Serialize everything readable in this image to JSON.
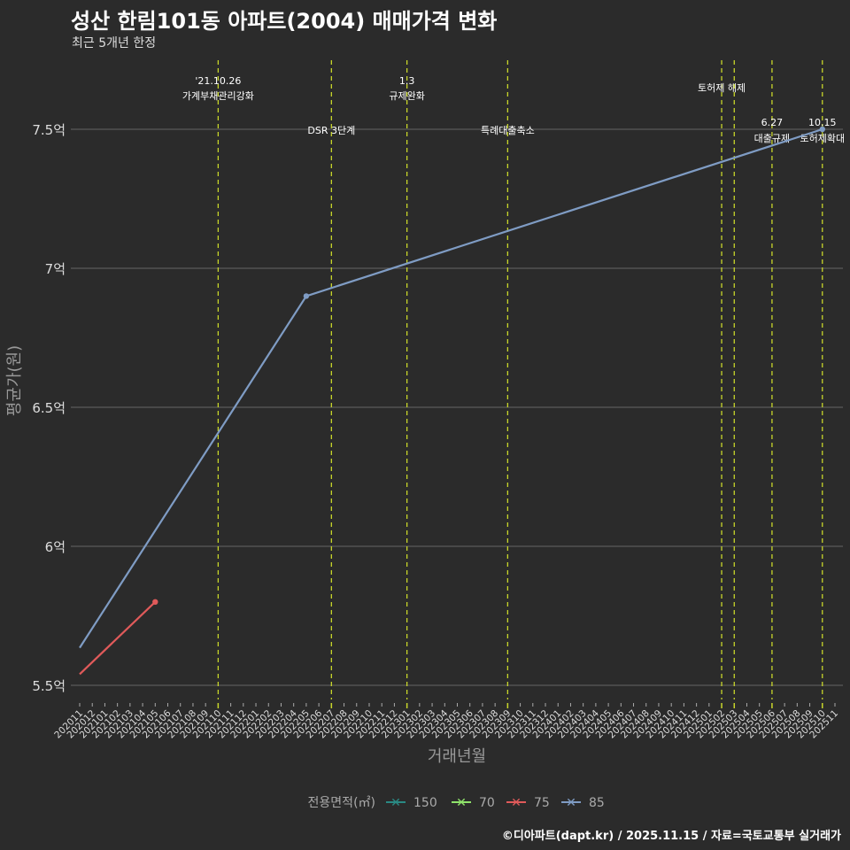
{
  "title": "성산 한림101동 아파트(2004) 매매가격 변화",
  "subtitle": "최근 5개년 한정",
  "caption": "©디아파트(dapt.kr) / 2025.11.15 / 자료=국토교통부 실거래가",
  "chart_data": {
    "type": "line",
    "xlabel": "거래년월",
    "ylabel": "평균가(원)",
    "x_start": "202011",
    "x_end": "202511",
    "ylim": [
      5.45,
      7.68
    ],
    "y_ticks": [
      5.5,
      6,
      6.5,
      7,
      7.5
    ],
    "y_tick_labels": [
      "5.5억",
      "6억",
      "6.5억",
      "7억",
      "7.5억"
    ],
    "legend_title": "전용면적(㎡)",
    "legend_position": "bottom",
    "series": [
      {
        "name": "150",
        "color": "#2a8a84",
        "points": []
      },
      {
        "name": "70",
        "color": "#8fe36b",
        "points": []
      },
      {
        "name": "75",
        "color": "#e05a5a",
        "points": [
          [
            "202011",
            5.54
          ],
          [
            "202105",
            5.8
          ]
        ]
      },
      {
        "name": "85",
        "color": "#7f9cc4",
        "points": [
          [
            "202011",
            5.635
          ],
          [
            "202205",
            6.9
          ],
          [
            "202510",
            7.5
          ]
        ]
      }
    ],
    "annotations": [
      {
        "month": "202110",
        "lines": [
          "'21.10.26",
          "가계부채관리강화"
        ],
        "row": "top"
      },
      {
        "month": "202207",
        "lines": [
          "DSR 3단계"
        ],
        "row": "low"
      },
      {
        "month": "202301",
        "lines": [
          "1.3",
          "규제완화"
        ],
        "row": "top"
      },
      {
        "month": "202309",
        "lines": [
          "특례대출축소"
        ],
        "row": "low"
      },
      {
        "month": "202502",
        "lines": [
          "토허제 해제"
        ],
        "row": "mid"
      },
      {
        "month": "202503",
        "lines": [],
        "row": "none"
      },
      {
        "month": "202506",
        "lines": [
          "6.27",
          "대출규제"
        ],
        "row": "right"
      },
      {
        "month": "202510",
        "lines": [
          "10.15",
          "토허제확대"
        ],
        "row": "right"
      }
    ],
    "vline_color": "#c8d62a"
  }
}
